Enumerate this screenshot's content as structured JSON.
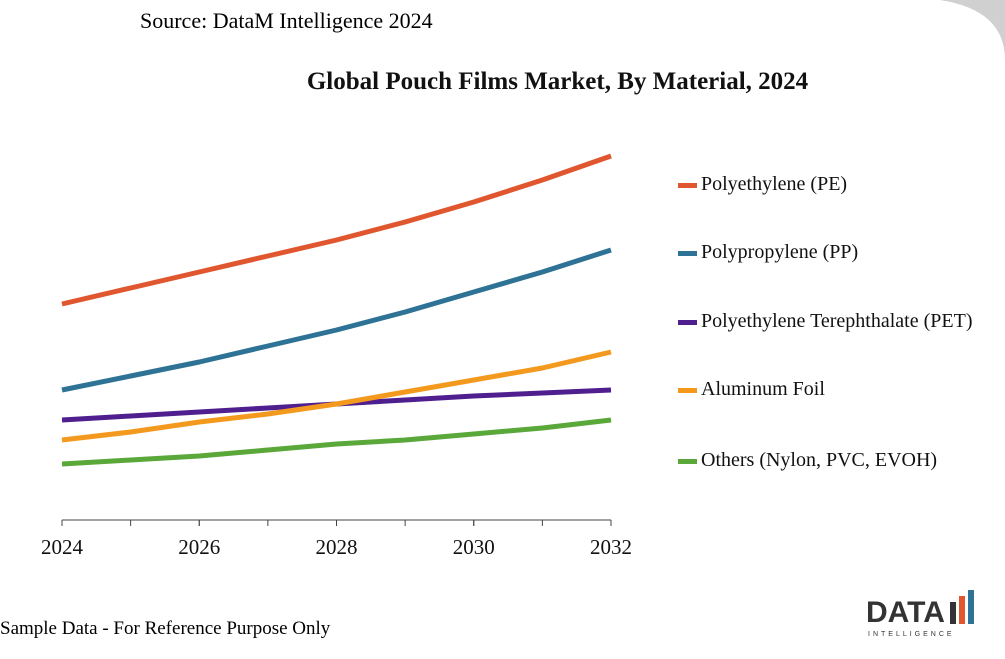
{
  "chart_data": {
    "type": "line",
    "source": "Source: DataM Intelligence 2024",
    "title": "Global Pouch Films Market, By Material, 2024",
    "footnote": "Sample Data - For Reference Purpose Only",
    "logo": {
      "name": "DATA",
      "tagline": "INTELLIGENCE"
    },
    "x": [
      2024,
      2025,
      2026,
      2027,
      2028,
      2029,
      2030,
      2031,
      2032
    ],
    "xlim": [
      2024,
      2032
    ],
    "xticks": [
      2024,
      2026,
      2028,
      2030,
      2032
    ],
    "ylim": [
      0,
      100
    ],
    "series": [
      {
        "name": "Polyethylene (PE)",
        "color": "#e0572f",
        "values": [
          54,
          58,
          62,
          66,
          70,
          74.5,
          79.5,
          85,
          91
        ]
      },
      {
        "name": "Polypropylene (PP)",
        "color": "#2e7395",
        "values": [
          32.5,
          36,
          39.5,
          43.5,
          47.5,
          52,
          57,
          62,
          67.5
        ]
      },
      {
        "name": "Polyethylene Terephthalate (PET)",
        "color": "#4f1f8f",
        "values": [
          25,
          26,
          27,
          28,
          29,
          30,
          31,
          31.75,
          32.5
        ]
      },
      {
        "name": "Aluminum Foil",
        "color": "#f39a1e",
        "values": [
          20,
          22,
          24.5,
          26.5,
          29,
          32,
          35,
          38,
          42
        ]
      },
      {
        "name": "Others (Nylon, PVC, EVOH)",
        "color": "#5aa83a",
        "values": [
          14,
          15,
          16,
          17.5,
          19,
          20,
          21.5,
          23,
          25
        ]
      }
    ]
  }
}
